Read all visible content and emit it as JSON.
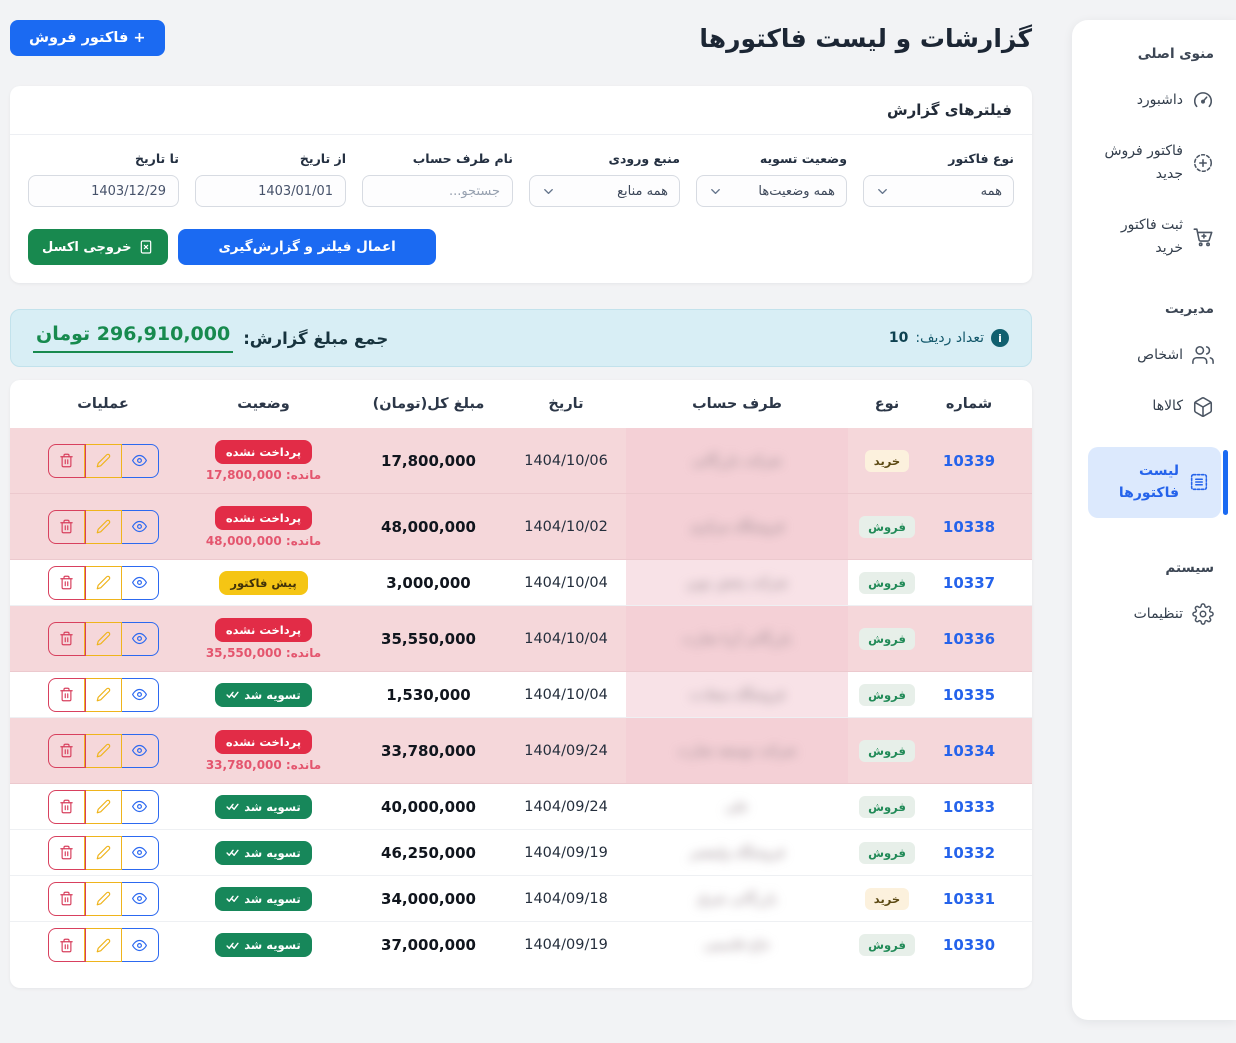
{
  "page": {
    "title": "گزارشات و لیست فاکتورها"
  },
  "header": {
    "new_invoice_button": "+ فاکتور فروش"
  },
  "sidebar": {
    "sections": [
      {
        "label": "منوی اصلی",
        "items": [
          {
            "slug": "dashboard",
            "icon": "gauge",
            "label": "داشبورد",
            "active": false
          },
          {
            "slug": "new-sale-invoice",
            "icon": "plus-circle",
            "label": "فاکتور فروش جدید",
            "active": false
          },
          {
            "slug": "register-purchase-invoice",
            "icon": "cart",
            "label": "ثبت فاکتور خرید",
            "active": false
          }
        ]
      },
      {
        "label": "مدیریت",
        "items": [
          {
            "slug": "persons",
            "icon": "users",
            "label": "اشخاص",
            "active": false
          },
          {
            "slug": "products",
            "icon": "box",
            "label": "کالاها",
            "active": false
          },
          {
            "slug": "invoice-list",
            "icon": "invoice-list",
            "label": "لیست فاکتورها",
            "active": true
          }
        ]
      },
      {
        "label": "سیستم",
        "items": [
          {
            "slug": "settings",
            "icon": "gear",
            "label": "تنظیمات",
            "active": false
          }
        ]
      }
    ]
  },
  "filters": {
    "title": "فیلترهای گزارش",
    "fields": [
      {
        "slug": "invoice-type",
        "label": "نوع فاکتور",
        "type": "select",
        "value": "همه"
      },
      {
        "slug": "settlement-status",
        "label": "وضعیت تسویه",
        "type": "select",
        "value": "همه وضعیت‌ها"
      },
      {
        "slug": "input-source",
        "label": "منبع ورودی",
        "type": "select",
        "value": "همه منابع"
      },
      {
        "slug": "party-search",
        "label": "نام طرف حساب",
        "type": "text",
        "placeholder": "جستجو..."
      },
      {
        "slug": "date-from",
        "label": "از تاریخ",
        "type": "date",
        "value": "1403/01/01"
      },
      {
        "slug": "date-to",
        "label": "تا تاریخ",
        "type": "date",
        "value": "1403/12/29"
      }
    ],
    "apply_button": "اعمال فیلتر و گزارش‌گیری",
    "excel_button": "خروجی اکسل"
  },
  "summary": {
    "row_count_label": "تعداد ردیف:",
    "row_count": "10",
    "total_label": "جمع مبلغ گزارش:",
    "total_amount": "296,910,000 تومان"
  },
  "table": {
    "headers": [
      "شماره",
      "نوع",
      "طرف حساب",
      "تاریخ",
      "مبلغ کل(تومان)",
      "وضعیت",
      "عملیات"
    ],
    "status_labels": {
      "unpaid": "پرداخت نشده",
      "settled": "تسویه شد",
      "proforma": "پیش فاکتور",
      "remaining_prefix": "مانده:"
    },
    "rows": [
      {
        "number": "10339",
        "type": "خرید",
        "type_kind": "buy",
        "party_redacted": "شرکت بازرگانی",
        "date": "1404/10/06",
        "amount": "17,800,000",
        "status": "unpaid",
        "remaining": "17,800,000",
        "highlight": true,
        "tint": true
      },
      {
        "number": "10338",
        "type": "فروش",
        "type_kind": "sell",
        "party_redacted": "فروشگاه مرکزی",
        "date": "1404/10/02",
        "amount": "48,000,000",
        "status": "unpaid",
        "remaining": "48,000,000",
        "highlight": true,
        "tint": true
      },
      {
        "number": "10337",
        "type": "فروش",
        "type_kind": "sell",
        "party_redacted": "شرکت پخش نوین",
        "date": "1404/10/04",
        "amount": "3,000,000",
        "status": "proforma",
        "remaining": null,
        "highlight": false,
        "tint": true
      },
      {
        "number": "10336",
        "type": "فروش",
        "type_kind": "sell",
        "party_redacted": "بازرگانی آریا تجارت",
        "date": "1404/10/04",
        "amount": "35,550,000",
        "status": "unpaid",
        "remaining": "35,550,000",
        "highlight": true,
        "tint": true
      },
      {
        "number": "10335",
        "type": "فروش",
        "type_kind": "sell",
        "party_redacted": "فروشگاه سعادت",
        "date": "1404/10/04",
        "amount": "1,530,000",
        "status": "settled",
        "remaining": null,
        "highlight": false,
        "tint": true
      },
      {
        "number": "10334",
        "type": "فروش",
        "type_kind": "sell",
        "party_redacted": "شرکت توسعه تجارت",
        "date": "1404/09/24",
        "amount": "33,780,000",
        "status": "unpaid",
        "remaining": "33,780,000",
        "highlight": true,
        "tint": true
      },
      {
        "number": "10333",
        "type": "فروش",
        "type_kind": "sell",
        "party_redacted": "علی",
        "date": "1404/09/24",
        "amount": "40,000,000",
        "status": "settled",
        "remaining": null,
        "highlight": false,
        "tint": false
      },
      {
        "number": "10332",
        "type": "فروش",
        "type_kind": "sell",
        "party_redacted": "فروشگاه ولیعصر",
        "date": "1404/09/19",
        "amount": "46,250,000",
        "status": "settled",
        "remaining": null,
        "highlight": false,
        "tint": false
      },
      {
        "number": "10331",
        "type": "خرید",
        "type_kind": "buy",
        "party_redacted": "بازرگانی شرق",
        "date": "1404/09/18",
        "amount": "34,000,000",
        "status": "settled",
        "remaining": null,
        "highlight": false,
        "tint": false
      },
      {
        "number": "10330",
        "type": "فروش",
        "type_kind": "sell",
        "party_redacted": "حاج قاسمی",
        "date": "1404/09/19",
        "amount": "37,000,000",
        "status": "settled",
        "remaining": null,
        "highlight": false,
        "tint": false
      }
    ]
  },
  "colors": {
    "accent": "#1b6af2",
    "link_blue": "#2563eb",
    "danger": "#e22c47",
    "success_badge": "#17875a",
    "warning": "#f5c514",
    "excel_green": "#18894f",
    "summary_bg": "#d8eef5",
    "summary_green": "#178a4e",
    "row_highlight": "#f5d7da"
  }
}
